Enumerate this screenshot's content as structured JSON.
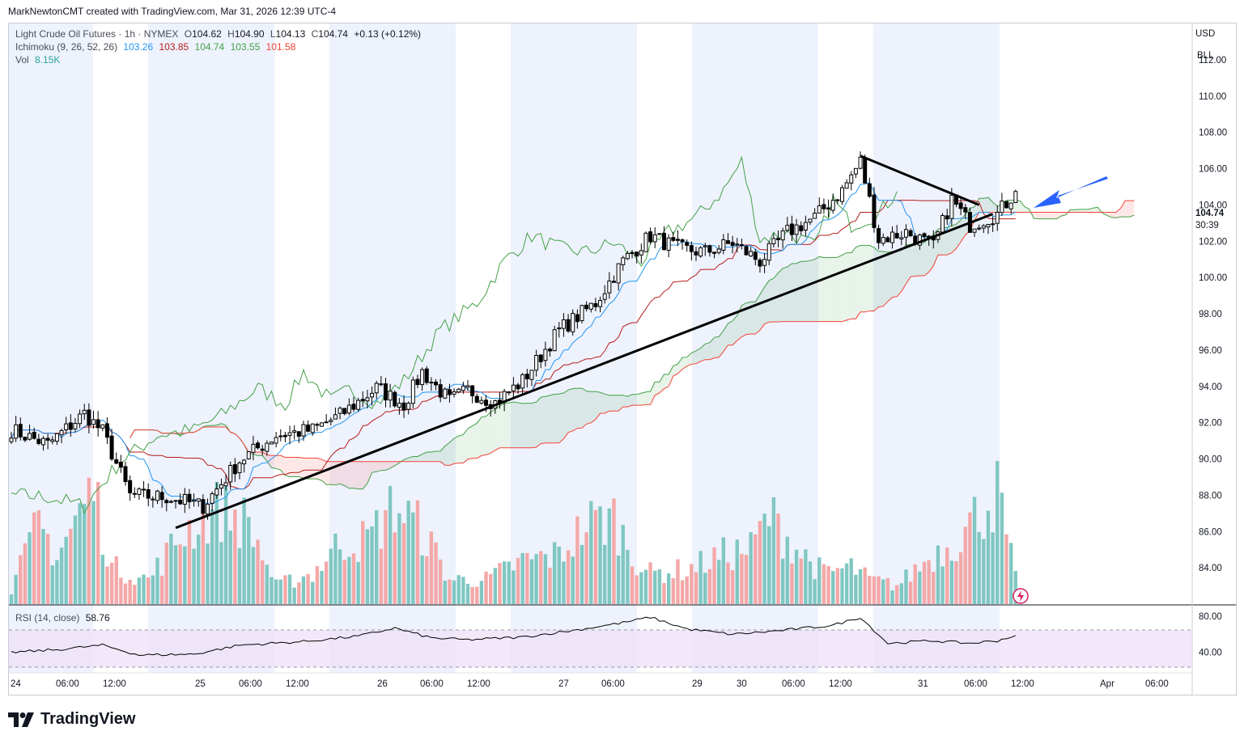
{
  "header": {
    "credit": "MarkNewtonCMT created with TradingView.com, Mar 31, 2026 12:39 UTC-4"
  },
  "legend": {
    "symbol": "Light Crude Oil Futures · 1h · NYMEX",
    "o_label": "O",
    "o_val": "104.62",
    "h_label": "H",
    "h_val": "104.90",
    "l_label": "L",
    "l_val": "104.13",
    "c_label": "C",
    "c_val": "104.74",
    "change": "+0.13 (+0.12%)",
    "ichimoku_label": "Ichimoku (9, 26, 52, 26)",
    "ichimoku_values": [
      "103.26",
      "103.85",
      "104.74",
      "103.55",
      "101.58"
    ],
    "vol_label": "Vol",
    "vol_val": "8.15K",
    "rsi_label": "RSI (14, close)",
    "rsi_val": "58.76"
  },
  "axis_top": {
    "currency": "USD",
    "unit": "BLL"
  },
  "price_badge": {
    "price": "104.74",
    "countdown": "30:39"
  },
  "logo": {
    "text": "TradingView"
  },
  "colors": {
    "up_candle": "#ffffff",
    "down_candle": "#000000",
    "tenkan": "#2196f3",
    "kijun": "#b71c1c",
    "span_a": "#43a047",
    "span_b": "#f44336",
    "vol_up": "#80c7c2",
    "vol_down": "#f4a8a8",
    "rsi": "#000000",
    "rsi_band": "#ede0f7",
    "session": "#eef2fd",
    "arrow": "#2962ff"
  },
  "chart_data": {
    "type": "candlestick",
    "title": "Light Crude Oil Futures · 1h · NYMEX",
    "ylim": [
      82.0,
      114.0
    ],
    "yticks": [
      "84.00",
      "86.00",
      "88.00",
      "90.00",
      "92.00",
      "94.00",
      "96.00",
      "98.00",
      "100.00",
      "102.00",
      "104.00",
      "106.00",
      "108.00",
      "110.00",
      "112.00"
    ],
    "rsi_ticks": [
      "80.00",
      "40.00"
    ],
    "rsi_ylim": [
      20,
      90
    ],
    "x_labels": [
      "24",
      "06:00",
      "12:00",
      "25",
      "06:00",
      "12:00",
      "26",
      "06:00",
      "12:00",
      "27",
      "06:00",
      "29",
      "30",
      "06:00",
      "12:00",
      "31",
      "06:00",
      "12:00",
      "Apr",
      "06:00"
    ],
    "close_anchors": [
      [
        0,
        91.6
      ],
      [
        8,
        90.8
      ],
      [
        16,
        92.5
      ],
      [
        20,
        91.5
      ],
      [
        26,
        88.0
      ],
      [
        34,
        87.9
      ],
      [
        42,
        87.4
      ],
      [
        50,
        89.9
      ],
      [
        58,
        91.3
      ],
      [
        66,
        91.6
      ],
      [
        72,
        92.4
      ],
      [
        80,
        93.9
      ],
      [
        86,
        93.0
      ],
      [
        90,
        94.8
      ],
      [
        96,
        93.2
      ],
      [
        100,
        93.8
      ],
      [
        106,
        93.1
      ],
      [
        112,
        94.3
      ],
      [
        120,
        97.1
      ],
      [
        128,
        98.6
      ],
      [
        134,
        100.9
      ],
      [
        140,
        102.3
      ],
      [
        146,
        101.6
      ],
      [
        152,
        101.4
      ],
      [
        158,
        101.9
      ],
      [
        164,
        100.9
      ],
      [
        170,
        102.5
      ],
      [
        176,
        103.3
      ],
      [
        182,
        104.8
      ],
      [
        186,
        106.4
      ],
      [
        190,
        102.1
      ],
      [
        196,
        102.5
      ],
      [
        202,
        101.7
      ],
      [
        206,
        104.3
      ],
      [
        210,
        102.9
      ],
      [
        216,
        103.5
      ],
      [
        220,
        104.74
      ]
    ],
    "volume_anchors": [
      [
        0,
        1.2
      ],
      [
        6,
        6.5
      ],
      [
        10,
        4.0
      ],
      [
        18,
        9.5
      ],
      [
        22,
        3.0
      ],
      [
        30,
        2.0
      ],
      [
        38,
        6.0
      ],
      [
        46,
        7.8
      ],
      [
        52,
        6.5
      ],
      [
        58,
        1.5
      ],
      [
        66,
        2.5
      ],
      [
        72,
        5.0
      ],
      [
        78,
        5.2
      ],
      [
        84,
        8.0
      ],
      [
        90,
        6.0
      ],
      [
        96,
        2.0
      ],
      [
        104,
        2.0
      ],
      [
        112,
        3.5
      ],
      [
        120,
        4.0
      ],
      [
        126,
        6.5
      ],
      [
        132,
        7.0
      ],
      [
        136,
        4.0
      ],
      [
        140,
        2.5
      ],
      [
        148,
        2.8
      ],
      [
        156,
        4.0
      ],
      [
        162,
        4.5
      ],
      [
        166,
        7.2
      ],
      [
        172,
        4.5
      ],
      [
        178,
        2.5
      ],
      [
        184,
        3.0
      ],
      [
        188,
        2.0
      ],
      [
        194,
        1.5
      ],
      [
        202,
        4.0
      ],
      [
        208,
        5.5
      ],
      [
        212,
        7.5
      ],
      [
        216,
        9.0
      ],
      [
        220,
        2.0
      ]
    ],
    "rsi_anchors": [
      [
        0,
        40
      ],
      [
        10,
        43
      ],
      [
        20,
        48
      ],
      [
        28,
        37
      ],
      [
        40,
        38
      ],
      [
        50,
        48
      ],
      [
        64,
        52
      ],
      [
        76,
        58
      ],
      [
        84,
        67
      ],
      [
        92,
        56
      ],
      [
        100,
        54
      ],
      [
        112,
        57
      ],
      [
        124,
        65
      ],
      [
        134,
        73
      ],
      [
        140,
        79
      ],
      [
        148,
        66
      ],
      [
        158,
        60
      ],
      [
        168,
        64
      ],
      [
        180,
        70
      ],
      [
        186,
        79
      ],
      [
        192,
        50
      ],
      [
        202,
        53
      ],
      [
        210,
        50
      ],
      [
        216,
        53
      ],
      [
        220,
        58.76
      ]
    ],
    "last_close": 104.74,
    "trendlines": [
      {
        "name": "ascending support",
        "from": [
          36,
          86.2
        ],
        "to": [
          215,
          103.5
        ]
      },
      {
        "name": "descending resistance",
        "from": [
          186,
          106.7
        ],
        "to": [
          212,
          104.0
        ]
      }
    ]
  }
}
